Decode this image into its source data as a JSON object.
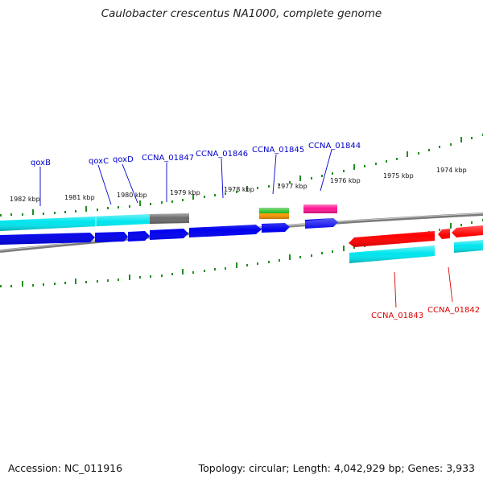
{
  "title": "Caulobacter crescentus NA1000, complete genome",
  "footer": {
    "accession": "Accession: NC_011916",
    "summary": "Topology: circular; Length: 4,042,929 bp; Genes: 3,933"
  },
  "colors": {
    "forward_label": "#0000cc",
    "reverse_label": "#dd0000",
    "scale_tick": "#1f8f1f",
    "backbone": "#7a7a7a",
    "blue_gene": "#0000ee",
    "red_gene": "#ff0000",
    "cyan_gene": "#00e5ee",
    "gray_gene": "#707070",
    "green_gene": "#22bb22",
    "orange_gene": "#ff9900",
    "magenta_gene": "#ff1493"
  },
  "scale_labels": [
    "1982 kbp",
    "1981 kbp",
    "1980 kbp",
    "1979 kbp",
    "1978 kbp",
    "1977 kbp",
    "1976 kbp",
    "1975 kbp",
    "1974 kbp"
  ],
  "gene_labels": {
    "forward": [
      "qoxB",
      "qoxC",
      "qoxD",
      "CCNA_01847",
      "CCNA_01846",
      "CCNA_01845",
      "CCNA_01844"
    ],
    "reverse": [
      "CCNA_01843",
      "CCNA_01842"
    ]
  }
}
